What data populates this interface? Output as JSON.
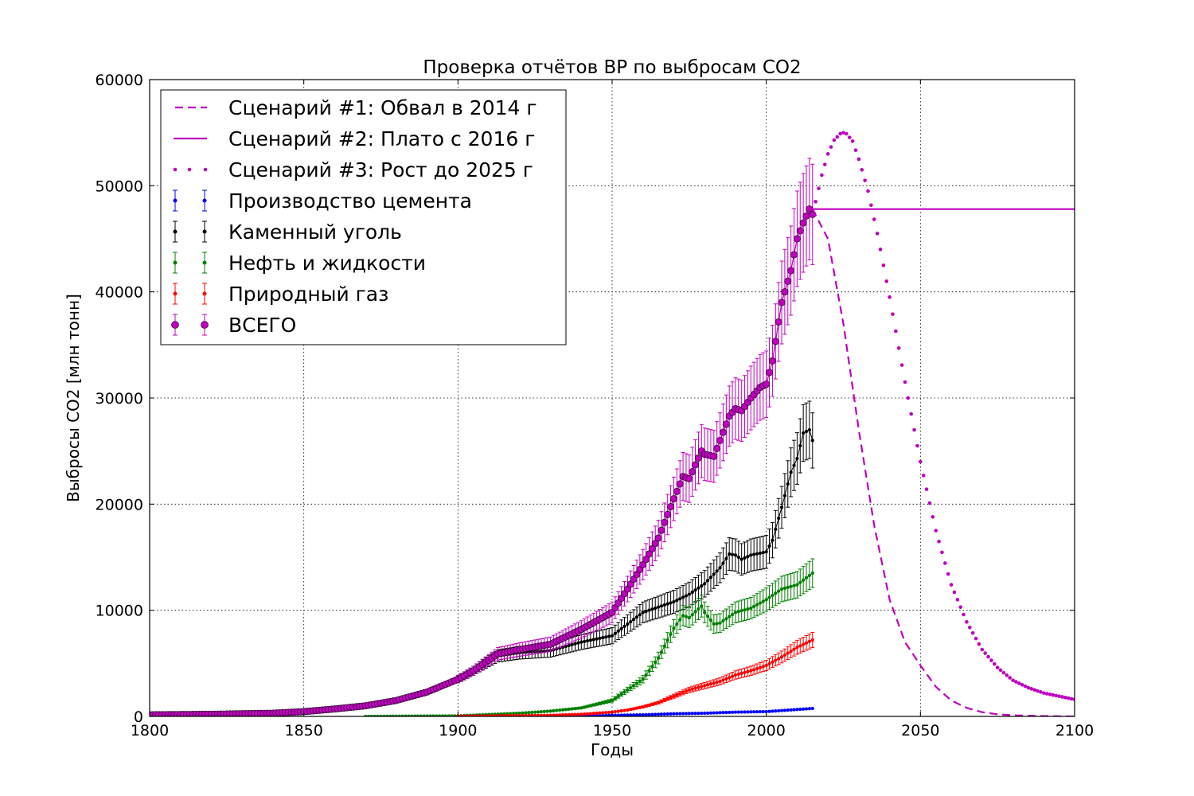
{
  "chart_data": {
    "type": "line",
    "title": "Проверка отчётов BP по выбросам CO2",
    "xlabel": "Годы",
    "ylabel": "Выбросы CO2 [млн тонн]",
    "xlim": [
      1800,
      2100
    ],
    "ylim": [
      0,
      60000
    ],
    "x_ticks": [
      "1800",
      "1850",
      "1900",
      "1950",
      "2000",
      "2050",
      "2100"
    ],
    "y_ticks": [
      "0",
      "10000",
      "20000",
      "30000",
      "40000",
      "50000",
      "60000"
    ],
    "grid": true,
    "legend_position": "top-left",
    "colors": {
      "scenario": "#bf00bf",
      "cement": "#0000ff",
      "coal": "#000000",
      "oil": "#008000",
      "gas": "#ff0000",
      "total": "#bf00bf"
    },
    "legend": [
      "Сценарий #1: Обвал в 2014 г",
      "Сценарий #2: Плато с 2016 г",
      "Сценарий #3: Рост до 2025 г",
      "Производство цемента",
      "Каменный уголь",
      "Нефть и жидкости",
      "Природный газ",
      "ВСЕГО"
    ],
    "series": [
      {
        "name": "Производство цемента",
        "style": "errorbar",
        "rel_error": 0.08,
        "x": [
          1920,
          1930,
          1940,
          1950,
          1960,
          1970,
          1980,
          1990,
          2000,
          2005,
          2010,
          2015
        ],
        "y": [
          0,
          30,
          50,
          100,
          150,
          250,
          300,
          400,
          450,
          550,
          650,
          750
        ]
      },
      {
        "name": "Каменный уголь",
        "style": "errorbar",
        "rel_error": 0.1,
        "x": [
          1800,
          1820,
          1840,
          1850,
          1860,
          1870,
          1880,
          1890,
          1900,
          1905,
          1910,
          1913,
          1920,
          1930,
          1940,
          1945,
          1950,
          1955,
          1960,
          1965,
          1970,
          1975,
          1980,
          1985,
          1988,
          1990,
          1992,
          1995,
          2000,
          2002,
          2005,
          2008,
          2010,
          2012,
          2014,
          2015
        ],
        "y": [
          150,
          200,
          300,
          450,
          700,
          1000,
          1500,
          2300,
          3500,
          4300,
          5200,
          5700,
          6000,
          6200,
          7000,
          7300,
          7600,
          8700,
          9800,
          10300,
          10800,
          11500,
          12500,
          14000,
          15300,
          15200,
          14800,
          15200,
          15500,
          16600,
          19700,
          23000,
          24300,
          26700,
          27000,
          26000
        ]
      },
      {
        "name": "Нефть и жидкости",
        "style": "errorbar",
        "rel_error": 0.1,
        "x": [
          1870,
          1900,
          1920,
          1930,
          1940,
          1950,
          1955,
          1960,
          1965,
          1970,
          1973,
          1975,
          1979,
          1980,
          1983,
          1985,
          1990,
          1995,
          2000,
          2005,
          2010,
          2015
        ],
        "y": [
          0,
          50,
          300,
          500,
          800,
          1500,
          2500,
          3500,
          5500,
          8300,
          9500,
          9300,
          10400,
          9800,
          8700,
          8800,
          9800,
          10200,
          11000,
          12000,
          12400,
          13500
        ]
      },
      {
        "name": "Природный газ",
        "style": "errorbar",
        "rel_error": 0.1,
        "x": [
          1900,
          1930,
          1940,
          1950,
          1955,
          1960,
          1965,
          1970,
          1975,
          1980,
          1985,
          1990,
          1995,
          2000,
          2005,
          2010,
          2015
        ],
        "y": [
          20,
          100,
          200,
          400,
          600,
          900,
          1300,
          1900,
          2500,
          2900,
          3300,
          3900,
          4300,
          4800,
          5600,
          6500,
          7200
        ]
      },
      {
        "name": "ВСЕГО",
        "style": "errorbar",
        "rel_error": 0.1,
        "x": [
          1800,
          1820,
          1840,
          1850,
          1860,
          1870,
          1880,
          1890,
          1900,
          1905,
          1910,
          1913,
          1920,
          1930,
          1940,
          1945,
          1950,
          1955,
          1960,
          1965,
          1970,
          1973,
          1975,
          1979,
          1980,
          1983,
          1985,
          1988,
          1990,
          1992,
          1995,
          1998,
          2000,
          2002,
          2005,
          2008,
          2010,
          2012,
          2014,
          2015
        ],
        "y": [
          150,
          200,
          300,
          450,
          700,
          1000,
          1500,
          2300,
          3500,
          4300,
          5300,
          5900,
          6300,
          6800,
          8200,
          9000,
          9800,
          12000,
          14300,
          16800,
          20500,
          22600,
          22400,
          25000,
          24700,
          24500,
          26000,
          28300,
          29000,
          28800,
          30000,
          31000,
          31300,
          33500,
          39000,
          42000,
          45000,
          46500,
          47800,
          47300
        ]
      },
      {
        "name": "Сценарий #1: Обвал в 2014 г",
        "style": "dashed",
        "x": [
          2015,
          2020,
          2025,
          2030,
          2035,
          2040,
          2045,
          2050,
          2055,
          2060,
          2065,
          2070,
          2075,
          2080,
          2090,
          2100
        ],
        "y": [
          47800,
          45000,
          37000,
          27000,
          18000,
          11000,
          7000,
          4800,
          2800,
          1500,
          800,
          400,
          200,
          100,
          30,
          0
        ]
      },
      {
        "name": "Сценарий #2: Плато с 2016 г",
        "style": "solid",
        "x": [
          2015,
          2100
        ],
        "y": [
          47800,
          47800
        ]
      },
      {
        "name": "Сценарий #3: Рост до 2025 г",
        "style": "dotted",
        "x": [
          2016,
          2018,
          2020,
          2022,
          2024,
          2025,
          2026,
          2028,
          2030,
          2033,
          2036,
          2040,
          2045,
          2050,
          2055,
          2060,
          2065,
          2070,
          2075,
          2080,
          2085,
          2090,
          2095,
          2100
        ],
        "y": [
          48500,
          51000,
          53000,
          54300,
          54900,
          55000,
          54900,
          54200,
          52500,
          49500,
          45500,
          39500,
          31500,
          24000,
          17500,
          12400,
          8900,
          6300,
          4600,
          3400,
          2700,
          2200,
          1900,
          1600
        ]
      }
    ]
  }
}
